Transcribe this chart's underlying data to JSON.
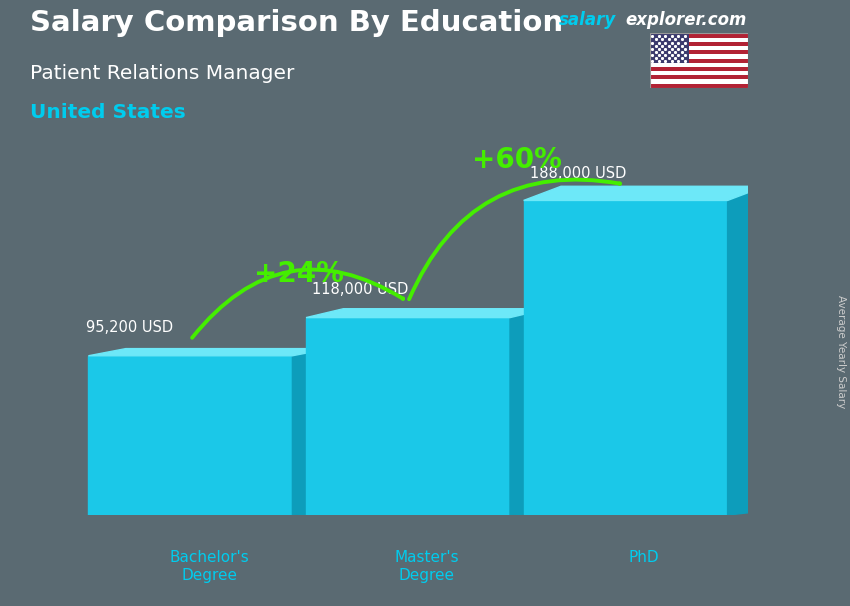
{
  "title_line1": "Salary Comparison By Education",
  "subtitle_line1": "Patient Relations Manager",
  "subtitle_line2": "United States",
  "categories": [
    "Bachelor's\nDegree",
    "Master's\nDegree",
    "PhD"
  ],
  "values": [
    95200,
    118000,
    188000
  ],
  "value_labels": [
    "95,200 USD",
    "118,000 USD",
    "188,000 USD"
  ],
  "bar_color_face": "#1bc8e8",
  "bar_color_side": "#0d9dbb",
  "bar_color_top": "#6de8f8",
  "pct_labels": [
    "+24%",
    "+60%"
  ],
  "pct_color": "#44ee00",
  "arrow_color": "#44ee00",
  "bg_color": "#5a6a72",
  "title_color": "#ffffff",
  "subtitle_color": "#ffffff",
  "location_color": "#00ccee",
  "value_label_color": "#ffffff",
  "xlabel_color": "#00ccee",
  "ymax": 210000,
  "watermark_salary": "salary",
  "watermark_rest": "explorer.com",
  "watermark_salary_color": "#00ccee",
  "watermark_rest_color": "#ffffff",
  "right_label": "Average Yearly Salary"
}
